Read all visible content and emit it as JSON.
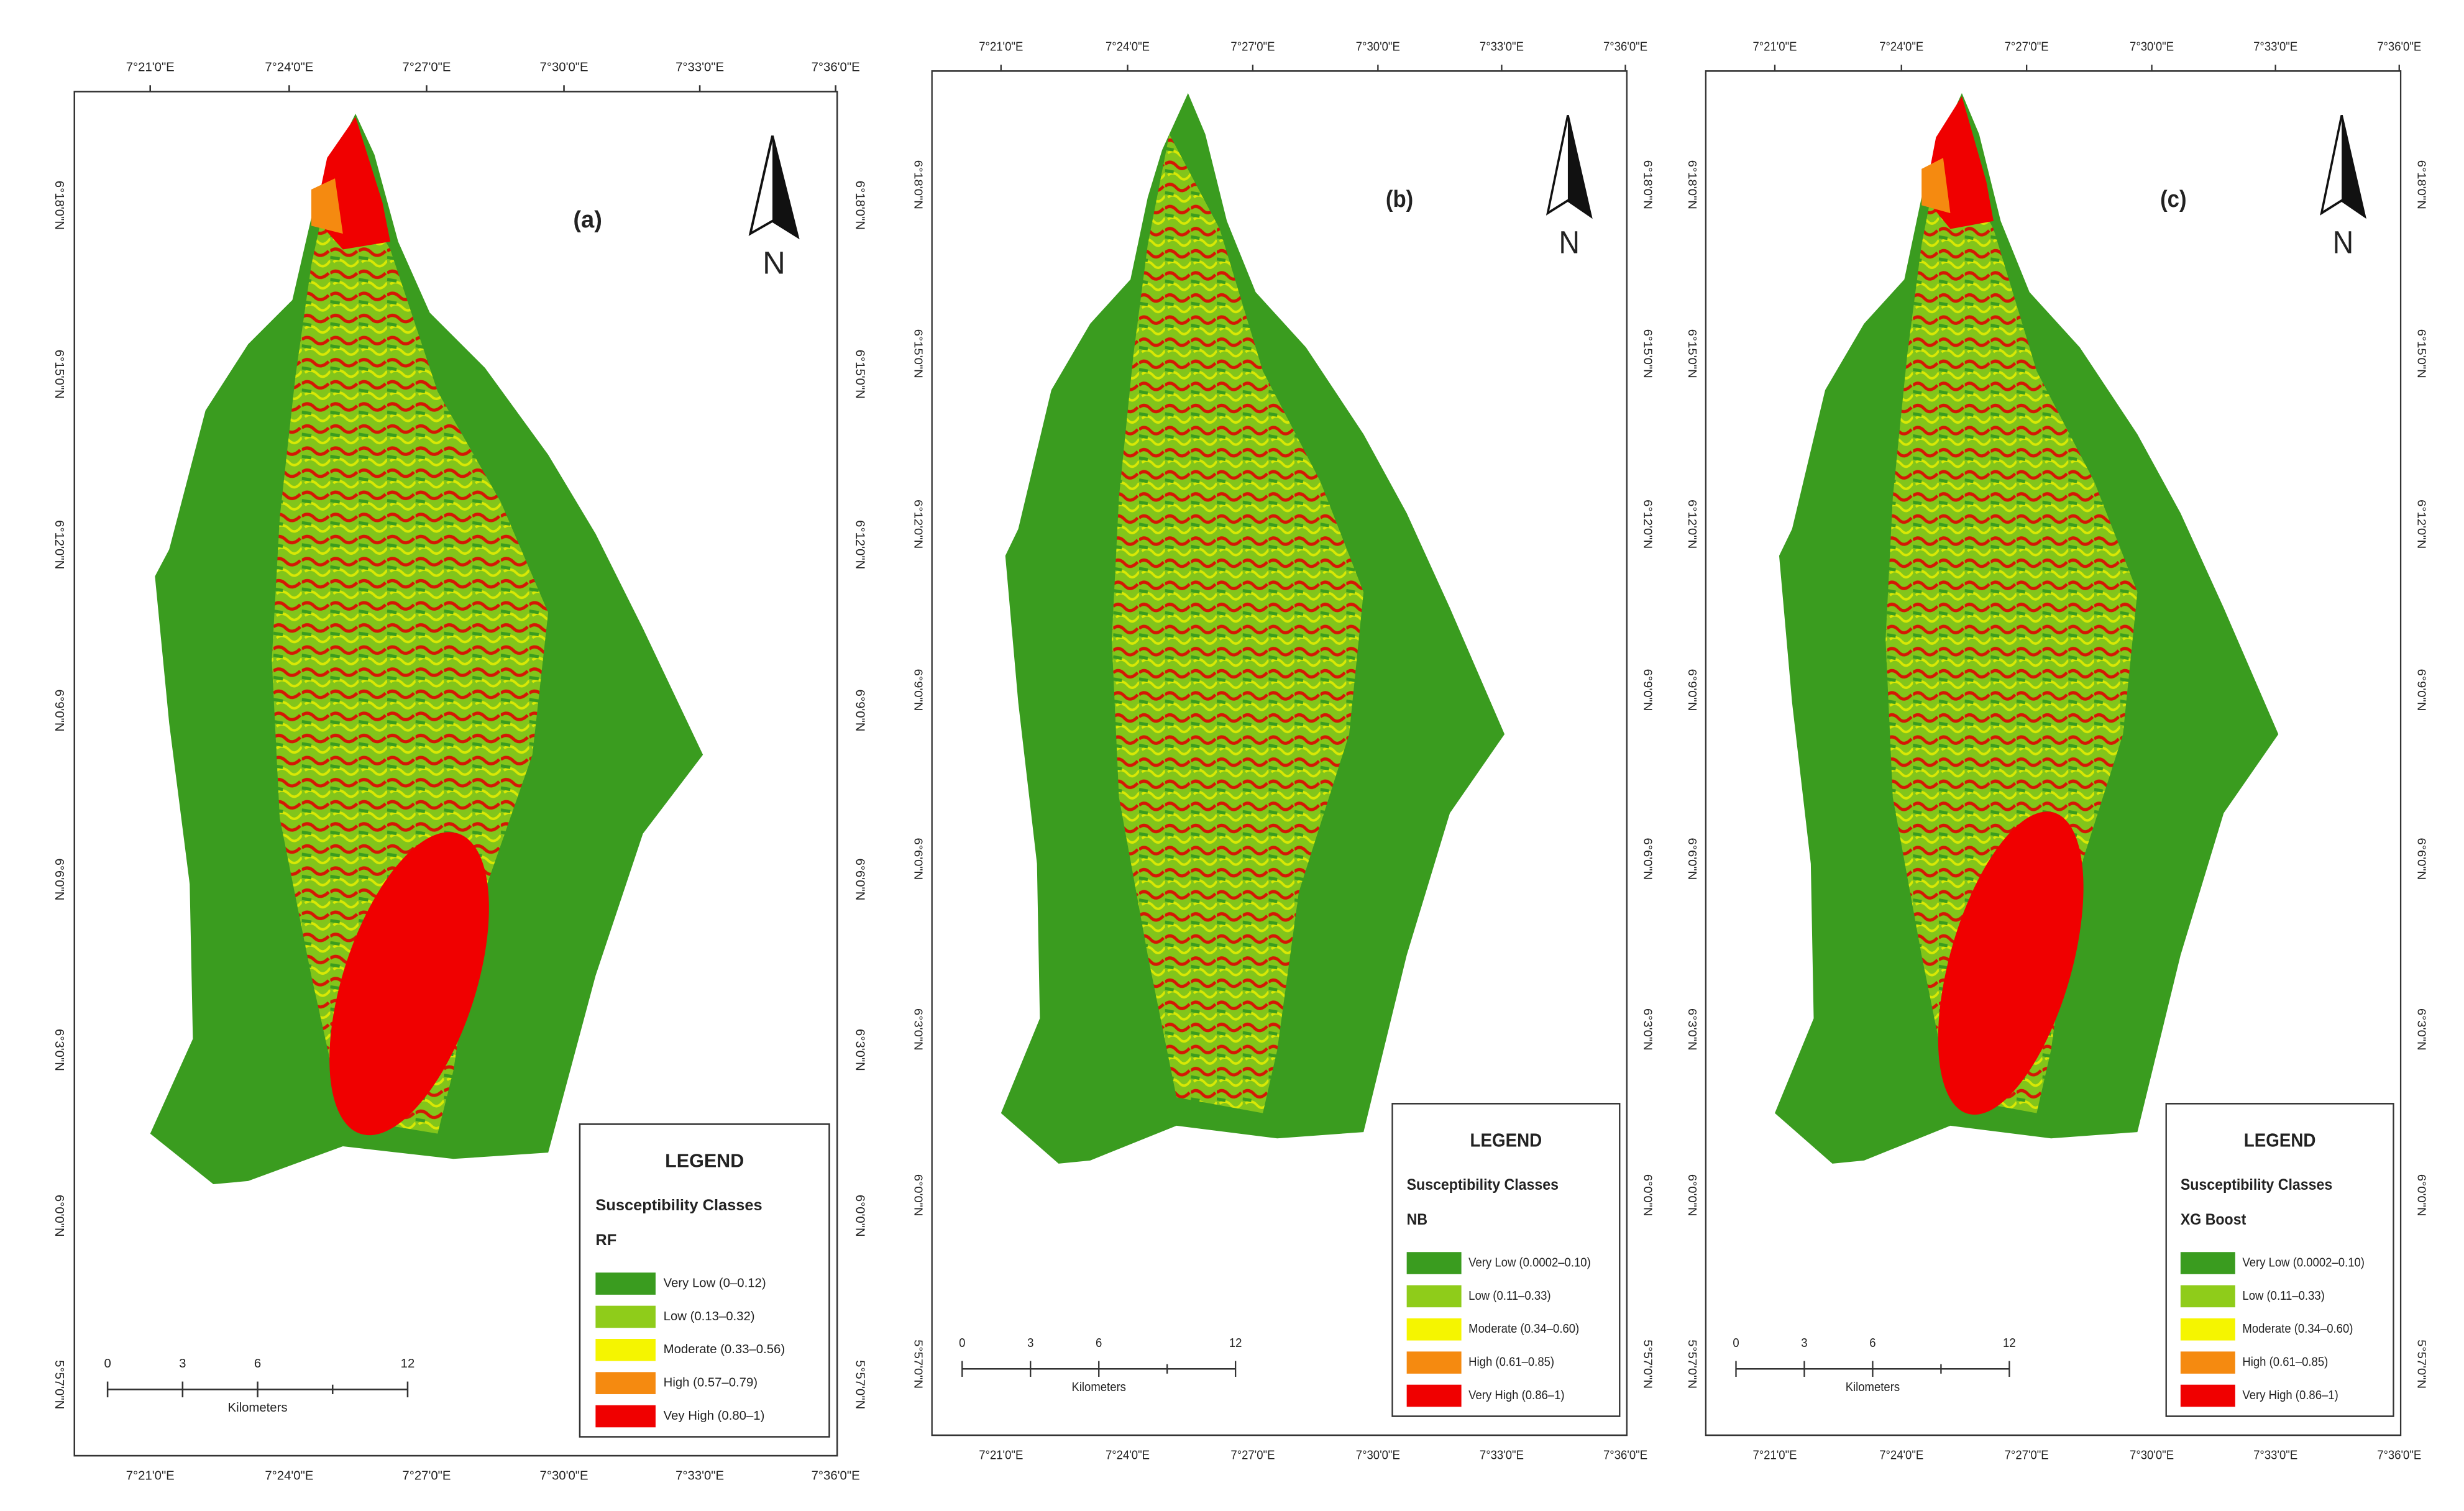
{
  "axes": {
    "longitudes": [
      "7°21'0\"E",
      "7°24'0\"E",
      "7°27'0\"E",
      "7°30'0\"E",
      "7°33'0\"E",
      "7°36'0\"E"
    ],
    "latitudes": [
      "6°18'0\"N",
      "6°15'0\"N",
      "6°12'0\"N",
      "6°9'0\"N",
      "6°6'0\"N",
      "6°3'0\"N",
      "6°0'0\"N",
      "5°57'0\"N"
    ]
  },
  "panels": [
    {
      "label": "(a)",
      "north": "N",
      "legend": {
        "title": "LEGEND",
        "subtitle": "Susceptibility Classes",
        "model": "RF",
        "classes": [
          {
            "label": "Very Low (0–0.12)",
            "color": "#3a9c1f"
          },
          {
            "label": "Low (0.13–0.32)",
            "color": "#8fcc1a"
          },
          {
            "label": "Moderate (0.33–0.56)",
            "color": "#f5f500"
          },
          {
            "label": "High (0.57–0.79)",
            "color": "#f58a10"
          },
          {
            "label": "Vey High (0.80–1)",
            "color": "#f00000"
          }
        ]
      },
      "scale": {
        "ticks": [
          0,
          3,
          6,
          12
        ],
        "unit": "Kilometers"
      }
    },
    {
      "label": "(b)",
      "north": "N",
      "legend": {
        "title": "LEGEND",
        "subtitle": "Susceptibility Classes",
        "model": "NB",
        "classes": [
          {
            "label": "Very Low (0.0002–0.10)",
            "color": "#3a9c1f"
          },
          {
            "label": "Low (0.11–0.33)",
            "color": "#8fcc1a"
          },
          {
            "label": "Moderate (0.34–0.60)",
            "color": "#f5f500"
          },
          {
            "label": "High (0.61–0.85)",
            "color": "#f58a10"
          },
          {
            "label": "Very High (0.86–1)",
            "color": "#f00000"
          }
        ]
      },
      "scale": {
        "ticks": [
          0,
          3,
          6,
          12
        ],
        "unit": "Kilometers"
      }
    },
    {
      "label": "(c)",
      "north": "N",
      "legend": {
        "title": "LEGEND",
        "subtitle": "Susceptibility Classes",
        "model": "XG Boost",
        "classes": [
          {
            "label": "Very Low (0.0002–0.10)",
            "color": "#3a9c1f"
          },
          {
            "label": "Low (0.11–0.33)",
            "color": "#8fcc1a"
          },
          {
            "label": "Moderate (0.34–0.60)",
            "color": "#f5f500"
          },
          {
            "label": "High (0.61–0.85)",
            "color": "#f58a10"
          },
          {
            "label": "Very High (0.86–1)",
            "color": "#f00000"
          }
        ]
      },
      "scale": {
        "ticks": [
          0,
          3,
          6,
          12
        ],
        "unit": "Kilometers"
      }
    }
  ]
}
